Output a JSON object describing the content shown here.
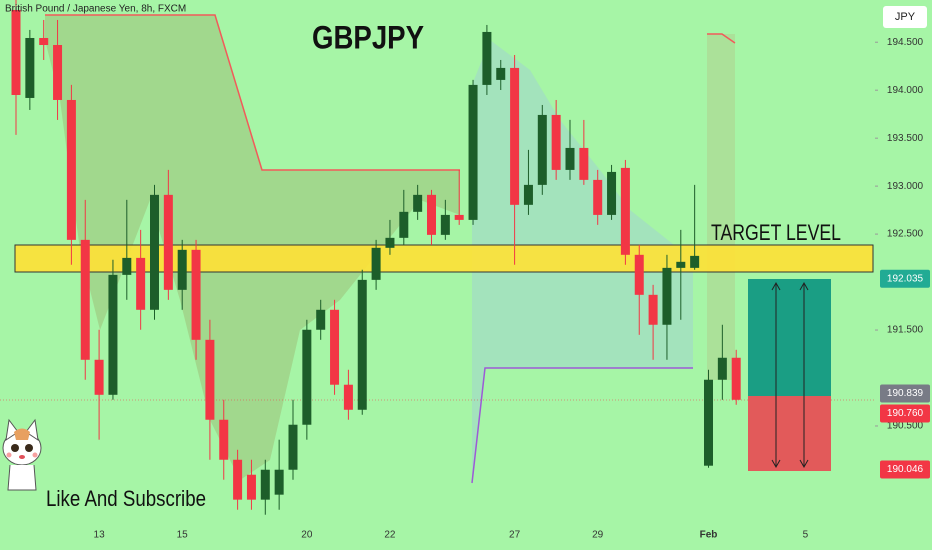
{
  "chart_data": {
    "type": "candlestick",
    "title": "GBPJPY",
    "subtitle": "British Pound / Japanese Yen, 8h, FXCM",
    "currency": "JPY",
    "annotation": "TARGET LEVEL",
    "footer": "Like And Subscribe",
    "up_color": "#1d5e2a",
    "down_color": "#f23645",
    "categories": [
      null,
      null,
      null,
      null,
      null,
      null,
      "13",
      null,
      null,
      null,
      null,
      null,
      "15",
      null,
      null,
      null,
      null,
      null,
      null,
      null,
      null,
      "20",
      null,
      null,
      null,
      null,
      null,
      "22",
      null,
      null,
      null,
      null,
      null,
      null,
      null,
      null,
      "27",
      null,
      null,
      null,
      null,
      null,
      "29",
      null,
      null,
      null,
      null,
      null,
      null,
      null,
      "Feb",
      null,
      null,
      null,
      null,
      null,
      null,
      "5",
      null,
      null,
      null
    ],
    "open": [
      194.836,
      193.919,
      194.544,
      194.471,
      193.898,
      192.44,
      191.19,
      190.825,
      192.075,
      192.252,
      191.711,
      192.909,
      191.919,
      192.336,
      191.398,
      190.565,
      190.148,
      189.992,
      189.732,
      189.784,
      190.044,
      190.513,
      191.503,
      191.711,
      190.93,
      190.669,
      192.023,
      192.357,
      192.461,
      192.732,
      192.909,
      192.492,
      192.7,
      192.648,
      194.055,
      194.107,
      194.232,
      192.805,
      193.013,
      193.742,
      193.169,
      193.398,
      193.065,
      192.7,
      193.19,
      192.284,
      191.867,
      191.555,
      192.148,
      192.148,
      190.086,
      190.982,
      191.211,
      null,
      null,
      null,
      null,
      null,
      null,
      null,
      null
    ],
    "high": [
      194.94,
      194.628,
      194.732,
      194.732,
      194.055,
      192.857,
      191.503,
      192.232,
      192.857,
      192.544,
      193.013,
      193.169,
      192.44,
      192.44,
      191.607,
      190.773,
      190.252,
      190.148,
      190.148,
      190.357,
      190.773,
      191.607,
      191.815,
      191.815,
      191.086,
      192.128,
      192.44,
      192.648,
      192.961,
      193.013,
      192.961,
      192.857,
      193.169,
      194.107,
      194.68,
      194.315,
      194.367,
      193.378,
      193.846,
      193.898,
      193.69,
      193.69,
      193.169,
      193.221,
      193.273,
      192.388,
      191.971,
      192.284,
      192.544,
      193.013,
      191.086,
      191.555,
      191.294,
      null,
      null,
      null,
      null,
      null,
      null,
      null,
      null
    ],
    "low": [
      193.534,
      193.794,
      194.315,
      193.69,
      192.18,
      190.982,
      190.357,
      190.773,
      191.815,
      191.503,
      191.607,
      191.815,
      191.711,
      191.19,
      190.148,
      189.94,
      189.627,
      189.627,
      189.575,
      189.627,
      189.94,
      190.357,
      191.398,
      190.825,
      190.565,
      190.617,
      191.919,
      192.284,
      192.388,
      192.648,
      192.388,
      192.44,
      192.596,
      192.596,
      193.95,
      194.002,
      192.18,
      192.7,
      192.909,
      193.065,
      193.065,
      193.013,
      192.596,
      192.648,
      192.18,
      191.45,
      191.19,
      191.19,
      191.607,
      192.128,
      190.065,
      190.773,
      190.721,
      null,
      null,
      null,
      null,
      null,
      null,
      null,
      null
    ],
    "close": [
      193.95,
      194.544,
      194.471,
      193.898,
      192.44,
      191.19,
      190.825,
      192.075,
      192.252,
      191.711,
      192.909,
      191.919,
      192.336,
      191.398,
      190.565,
      190.148,
      189.732,
      189.732,
      190.044,
      190.044,
      190.513,
      191.503,
      191.711,
      190.93,
      190.669,
      192.023,
      192.357,
      192.461,
      192.732,
      192.909,
      192.492,
      192.7,
      192.648,
      194.055,
      194.607,
      194.232,
      192.805,
      193.013,
      193.742,
      193.169,
      193.398,
      193.065,
      192.7,
      193.148,
      192.284,
      191.867,
      191.555,
      192.148,
      192.211,
      192.273,
      190.982,
      191.211,
      190.773,
      null,
      null,
      null,
      null,
      null,
      null,
      null,
      null
    ],
    "ylim": [
      189.52,
      194.94
    ],
    "yticks": [
      {
        "value": 190.5,
        "label": "190.500"
      },
      {
        "value": 191.5,
        "label": "191.500"
      },
      {
        "value": 192.5,
        "label": "192.500"
      },
      {
        "value": 193,
        "label": "193.000"
      },
      {
        "value": 193.5,
        "label": "193.500"
      },
      {
        "value": 194,
        "label": "194.000"
      },
      {
        "value": 194.5,
        "label": "194.500"
      }
    ],
    "price_labels": [
      {
        "value": 192.035,
        "label": "192.035",
        "color": "#22ab94"
      },
      {
        "value": 190.839,
        "label": "190.839",
        "color": "#787b86"
      },
      {
        "value": 190.76,
        "label": "190.760",
        "color": "#f23645"
      },
      {
        "value": 190.046,
        "label": "190.046",
        "color": "#f23645"
      }
    ]
  }
}
